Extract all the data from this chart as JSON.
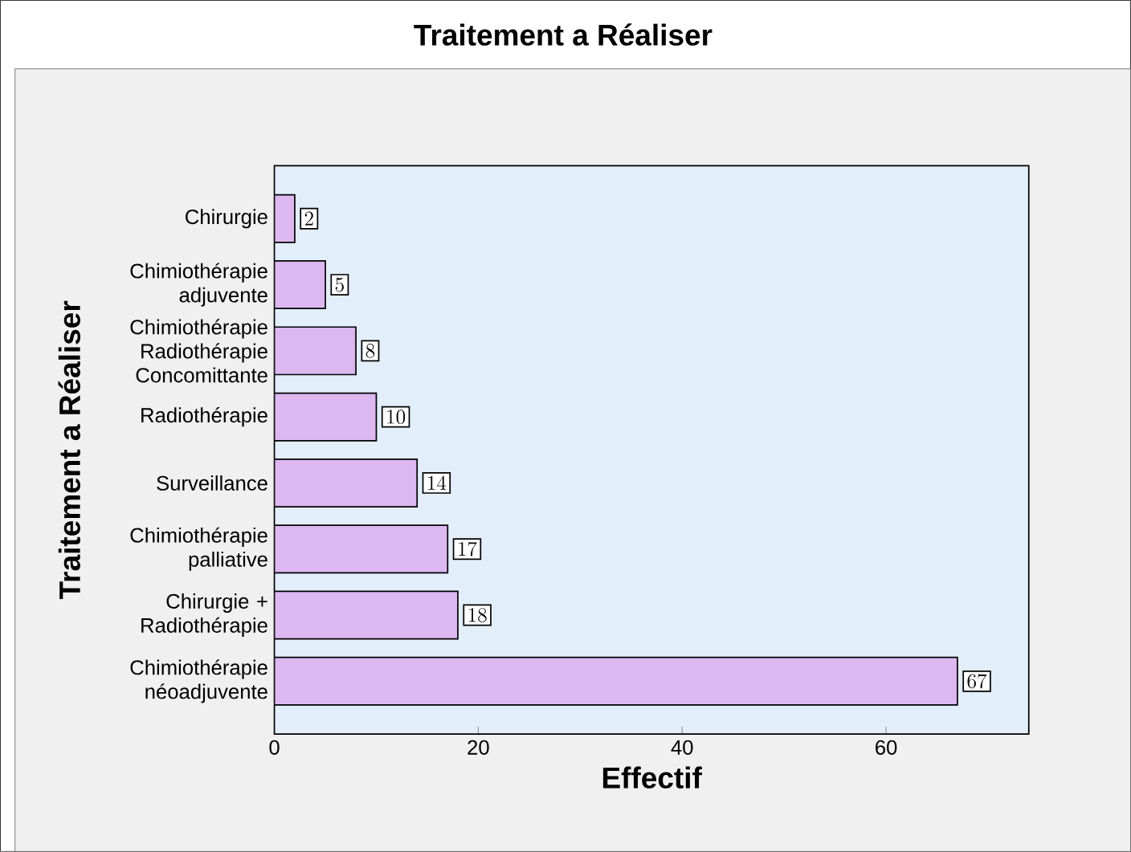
{
  "chart_data": {
    "type": "bar",
    "orientation": "horizontal",
    "title": "Traitement a Réaliser",
    "xlabel": "Effectif",
    "ylabel": "Traitement a Réaliser",
    "categories": [
      "Chirurgie",
      "Chimiothérapie adjuvente",
      "Chimiothérapie Radiothérapie Concomittante",
      "Radiothérapie",
      "Surveillance",
      "Chimiothérapie palliative",
      "Chirurgie + Radiothérapie",
      "Chimiothérapie néoadjuvente"
    ],
    "values": [
      2,
      5,
      8,
      10,
      14,
      17,
      18,
      67
    ],
    "color": "#dcb7f0",
    "data_labels": true,
    "xlim": [
      0,
      74
    ],
    "xticks": [
      0,
      20,
      40,
      60
    ]
  }
}
